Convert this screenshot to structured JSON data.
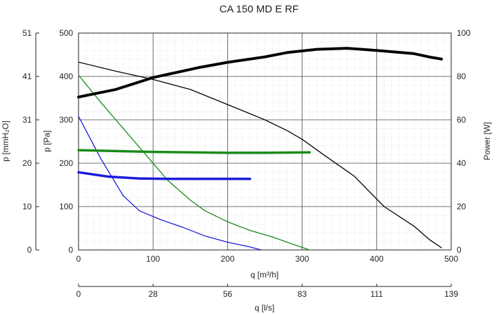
{
  "chart_data": {
    "type": "line",
    "title": "CA 150 MD E RF",
    "xlabel": "q [m³/h]",
    "x2label": "q [l/s]",
    "ylabel_pa": "p [Pa]",
    "ylabel_mm": "p [mmH₂O]",
    "ylabel_power": "Power [W]",
    "xlim": [
      0,
      500
    ],
    "ylim": [
      0,
      500
    ],
    "power_lim": [
      0,
      100
    ],
    "x_ticks": [
      "0",
      "100",
      "200",
      "300",
      "400",
      "500"
    ],
    "x2_ticks": [
      "0",
      "28",
      "56",
      "83",
      "111",
      "139"
    ],
    "y_ticks_pa": [
      "0",
      "100",
      "200",
      "300",
      "400",
      "500"
    ],
    "y_ticks_mm": [
      "0",
      "10",
      "20",
      "31",
      "41",
      "51"
    ],
    "y_ticks_power": [
      "0",
      "20",
      "40",
      "60",
      "80",
      "100"
    ],
    "series": [
      {
        "name": "pressure-max",
        "axis": "pressure",
        "color": "#000000",
        "width": 1.3,
        "points": [
          [
            0,
            433
          ],
          [
            50,
            412
          ],
          [
            100,
            393
          ],
          [
            150,
            370
          ],
          [
            200,
            335
          ],
          [
            250,
            300
          ],
          [
            280,
            275
          ],
          [
            300,
            255
          ],
          [
            330,
            218
          ],
          [
            370,
            170
          ],
          [
            410,
            100
          ],
          [
            450,
            55
          ],
          [
            470,
            25
          ],
          [
            487,
            5
          ]
        ]
      },
      {
        "name": "pressure-medium",
        "axis": "pressure",
        "color": "#1a8a1a",
        "width": 1.3,
        "points": [
          [
            0,
            403
          ],
          [
            30,
            340
          ],
          [
            60,
            280
          ],
          [
            90,
            220
          ],
          [
            120,
            160
          ],
          [
            150,
            115
          ],
          [
            170,
            90
          ],
          [
            200,
            65
          ],
          [
            230,
            45
          ],
          [
            260,
            30
          ],
          [
            285,
            15
          ],
          [
            310,
            0
          ]
        ]
      },
      {
        "name": "pressure-min",
        "axis": "pressure",
        "color": "#1a1adb",
        "width": 1.3,
        "points": [
          [
            0,
            308
          ],
          [
            30,
            210
          ],
          [
            60,
            125
          ],
          [
            82,
            90
          ],
          [
            110,
            70
          ],
          [
            140,
            52
          ],
          [
            170,
            32
          ],
          [
            200,
            18
          ],
          [
            230,
            7
          ],
          [
            245,
            0
          ]
        ]
      },
      {
        "name": "power-max",
        "axis": "power",
        "color": "#000000",
        "width": 4,
        "points": [
          [
            0,
            70.5
          ],
          [
            50,
            74
          ],
          [
            100,
            79.5
          ],
          [
            160,
            84
          ],
          [
            200,
            86.5
          ],
          [
            250,
            89
          ],
          [
            280,
            91
          ],
          [
            320,
            92.5
          ],
          [
            360,
            93
          ],
          [
            400,
            92
          ],
          [
            450,
            90.5
          ],
          [
            470,
            89
          ],
          [
            487,
            88
          ]
        ]
      },
      {
        "name": "power-medium",
        "axis": "power",
        "color": "#1a8a1a",
        "width": 3.5,
        "points": [
          [
            0,
            46
          ],
          [
            50,
            45.6
          ],
          [
            100,
            45.2
          ],
          [
            150,
            45
          ],
          [
            200,
            44.8
          ],
          [
            250,
            44.8
          ],
          [
            310,
            45
          ]
        ]
      },
      {
        "name": "power-min",
        "axis": "power",
        "color": "#1a1adb",
        "width": 3.5,
        "points": [
          [
            0,
            35.8
          ],
          [
            40,
            33.8
          ],
          [
            80,
            33
          ],
          [
            120,
            32.8
          ],
          [
            160,
            32.8
          ],
          [
            200,
            32.8
          ],
          [
            230,
            32.8
          ]
        ]
      }
    ]
  }
}
